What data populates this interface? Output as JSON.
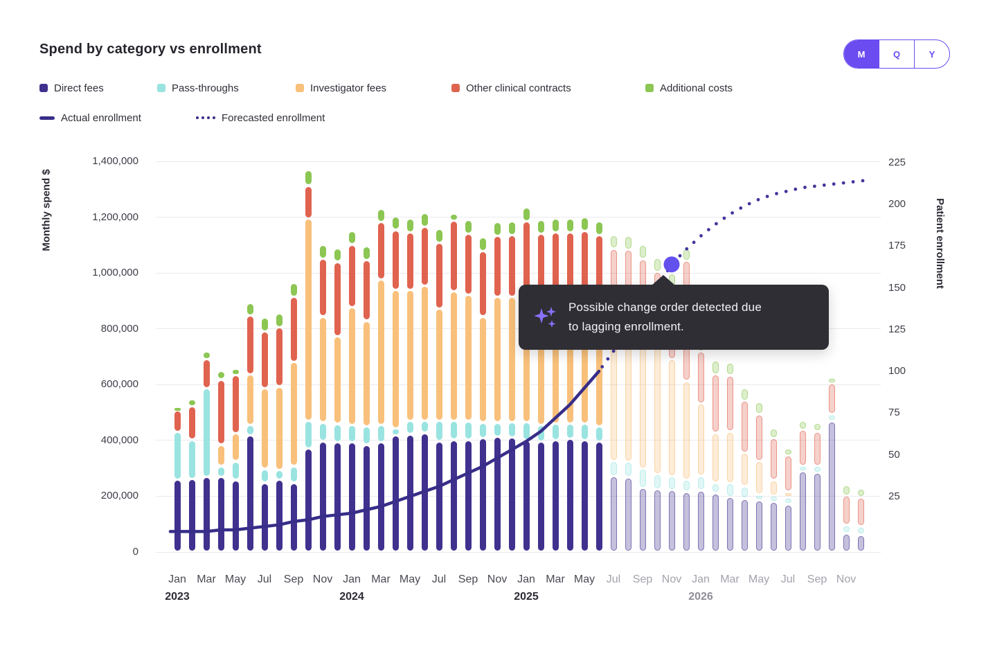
{
  "header": {
    "title": "Spend by category vs enrollment",
    "range_toggle": {
      "options": [
        "M",
        "Q",
        "Y"
      ],
      "selected": "M"
    }
  },
  "legend": {
    "bar_items": [
      {
        "label": "Direct fees",
        "color": "#40318e"
      },
      {
        "label": "Pass-throughs",
        "color": "#99e3e0"
      },
      {
        "label": "Investigator fees",
        "color": "#f8c07a"
      },
      {
        "label": "Other clinical contracts",
        "color": "#e0634f"
      },
      {
        "label": "Additional costs",
        "color": "#8cc653"
      }
    ],
    "line_items": [
      {
        "label": "Actual enrollment",
        "style": "solid-line"
      },
      {
        "label": "Forecasted enrollment",
        "style": "dotted-line"
      }
    ]
  },
  "tooltip": {
    "icon": "sparkle-icon",
    "line1": "Possible change order detected due",
    "line2": "to lagging enrollment."
  },
  "colors": {
    "direct_fees": "#40318e",
    "pass_throughs": "#99e3e0",
    "investigator_fees": "#f8c07a",
    "other_clinical_contracts": "#e0634f",
    "additional_costs": "#8cc653",
    "enrollment_line": "#382d88",
    "forecast_dots": "#41369c",
    "forecast_marker": "#6350ed",
    "toggle_accent": "#6a4cf0",
    "tooltip_bg": "#2f2e34",
    "sparkle": "#8a70fb",
    "gridline": "#eae9ef"
  },
  "chart_data": {
    "type": "combo: stacked monthly bars (spend $) + enrollment lines",
    "title": "Spend by category vs enrollment",
    "y_left": {
      "label": "Monthly spend $",
      "tick_values": [
        0,
        200,
        400,
        600,
        800,
        1000,
        1200,
        1400
      ],
      "tick_labels": [
        "0",
        "200,000",
        "400,000",
        "600,000",
        "800,000",
        "1,000,000",
        "1,200,000",
        "1,400,000"
      ],
      "unit": "$ thousands",
      "range": [
        0,
        1400000
      ],
      "grid": true
    },
    "y_right": {
      "label": "Patient enrollment",
      "tick_values": [
        25,
        50,
        75,
        100,
        125,
        150,
        175,
        200,
        225
      ],
      "range": [
        0,
        225
      ]
    },
    "x_axis": {
      "years": [
        "2023",
        "2024",
        "2025",
        "2026"
      ],
      "visible_month_labels": [
        "Jan",
        "Mar",
        "May",
        "Jul",
        "Sep",
        "Nov"
      ],
      "months_count": 48,
      "first_month": "Jan 2023",
      "last_month": "Dec 2026"
    },
    "forecast_start_index": 30,
    "forecast_note": "bars and x labels from Jul 2025 onward are faded (forecast)",
    "bar_unit": "$ thousands",
    "series": [
      {
        "name": "Direct fees",
        "color": "#40318e",
        "values": [
          260,
          262,
          270,
          270,
          258,
          419,
          248,
          260,
          248,
          372,
          397,
          394,
          394,
          385,
          394,
          419,
          422,
          427,
          397,
          402,
          402,
          409,
          414,
          410,
          400,
          395,
          400,
          405,
          400,
          395,
          272,
          268,
          230,
          225,
          222,
          216,
          221,
          211,
          198,
          191,
          186,
          179,
          171,
          290,
          285,
          469,
          67,
          62
        ]
      },
      {
        "name": "Pass-throughs",
        "color": "#99e3e0",
        "values": [
          170,
          140,
          318,
          38,
          67,
          37,
          50,
          35,
          60,
          99,
          67,
          65,
          62,
          66,
          62,
          25,
          49,
          44,
          74,
          69,
          67,
          55,
          50,
          55,
          65,
          60,
          60,
          55,
          60,
          55,
          55,
          55,
          70,
          55,
          50,
          44,
          52,
          37,
          48,
          45,
          20,
          24,
          25,
          20,
          25,
          25,
          30,
          30
        ]
      },
      {
        "name": "Investigator fees",
        "color": "#f8c07a",
        "values": [
          0,
          0,
          0,
          77,
          100,
          181,
          290,
          298,
          374,
          725,
          380,
          315,
          422,
          378,
          520,
          496,
          469,
          484,
          402,
          464,
          454,
          380,
          451,
          450,
          470,
          450,
          455,
          460,
          465,
          455,
          520,
          515,
          490,
          460,
          420,
          353,
          260,
          179,
          186,
          121,
          121,
          55,
          20,
          0,
          0,
          0,
          0,
          0
        ]
      },
      {
        "name": "Other clinical contracts",
        "color": "#e0634f",
        "values": [
          78,
          120,
          104,
          233,
          210,
          211,
          203,
          213,
          233,
          117,
          208,
          266,
          224,
          218,
          206,
          214,
          206,
          211,
          236,
          253,
          218,
          235,
          219,
          220,
          250,
          235,
          230,
          225,
          225,
          230,
          240,
          245,
          260,
          265,
          258,
          430,
          186,
          210,
          201,
          186,
          167,
          151,
          131,
          129,
          122,
          111,
          106,
          104
        ]
      },
      {
        "name": "Additional costs",
        "color": "#8cc653",
        "values": [
          12,
          26,
          27,
          32,
          22,
          45,
          50,
          50,
          50,
          57,
          50,
          49,
          49,
          50,
          49,
          49,
          50,
          50,
          50,
          25,
          50,
          50,
          50,
          50,
          50,
          50,
          50,
          50,
          50,
          50,
          50,
          50,
          50,
          50,
          50,
          45,
          30,
          50,
          47,
          45,
          44,
          35,
          25,
          32,
          32,
          20,
          38,
          32
        ]
      }
    ],
    "enrollment_actual": {
      "name": "Actual enrollment",
      "first_month": "Jan 2023",
      "last_month": "Jun 2025",
      "values": [
        4,
        4,
        4,
        5,
        5,
        6,
        7,
        8,
        10,
        11,
        13,
        14,
        15,
        17,
        19,
        22,
        25,
        28,
        31,
        35,
        39,
        43,
        48,
        53,
        58,
        64,
        72,
        80,
        90,
        100
      ]
    },
    "enrollment_forecast": {
      "name": "Forecasted enrollment",
      "first_month": "Jun 2025",
      "last_month": "Dec 2026",
      "values": [
        100,
        112,
        124,
        136,
        150,
        164,
        173,
        181,
        188,
        194,
        199,
        203,
        206,
        208,
        210,
        211,
        212,
        213,
        214
      ]
    },
    "forecast_marker": {
      "month": "Nov 2025",
      "month_index": 34,
      "value": 164
    }
  }
}
